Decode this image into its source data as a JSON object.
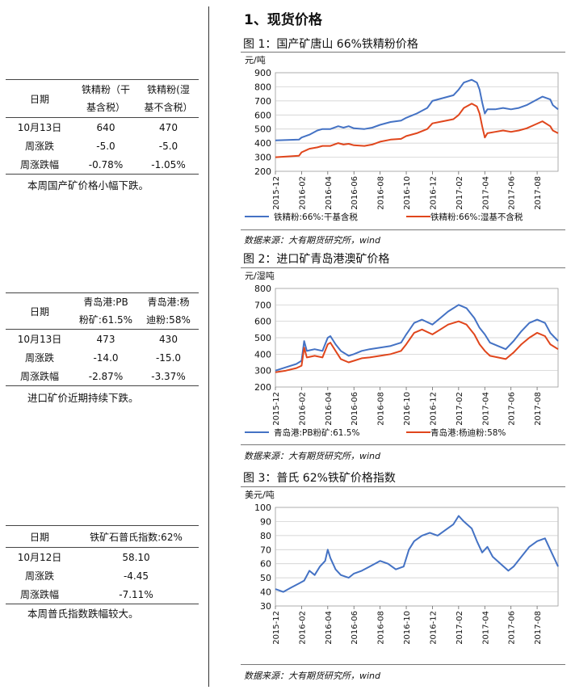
{
  "section_title": "1、现货价格",
  "tables": [
    {
      "header": [
        "日期",
        "铁精粉（干基含税）",
        "铁精粉(湿基不含税）"
      ],
      "header_lines": [
        [
          "日期"
        ],
        [
          "铁精粉（干",
          "基含税）"
        ],
        [
          "铁精粉(湿",
          "基不含税）"
        ]
      ],
      "rows": [
        [
          "10月13日",
          "640",
          "470"
        ],
        [
          "周涨跌",
          "-5.0",
          "-5.0"
        ],
        [
          "周涨跌幅",
          "-0.78%",
          "-1.05%"
        ]
      ],
      "note": "本周国产矿价格小幅下跌。"
    },
    {
      "header": [
        "日期",
        "青岛港:PB粉矿:61.5%",
        "青岛港:杨迪粉:58%"
      ],
      "header_lines": [
        [
          "日期"
        ],
        [
          "青岛港:PB",
          "粉矿:61.5%"
        ],
        [
          "青岛港:杨",
          "迪粉:58%"
        ]
      ],
      "rows": [
        [
          "10月13日",
          "473",
          "430"
        ],
        [
          "周涨跌",
          "-14.0",
          "-15.0"
        ],
        [
          "周涨跌幅",
          "-2.87%",
          "-3.37%"
        ]
      ],
      "note": "进口矿价近期持续下跌。"
    },
    {
      "header": [
        "日期",
        "铁矿石普氏指数:62%"
      ],
      "rows": [
        [
          "10月12日",
          "58.10"
        ],
        [
          "周涨跌",
          "-4.45"
        ],
        [
          "周涨跌幅",
          "-7.11%"
        ]
      ],
      "note": "本周普氏指数跌幅较大。"
    }
  ],
  "source_text": "数据来源：大有期货研究所，wind",
  "chart_data": [
    {
      "type": "line",
      "figure_title": "图 1：国产矿唐山 66%铁精粉价格",
      "ylabel": "元/吨",
      "ylim": [
        200,
        900
      ],
      "yticks": [
        200,
        300,
        400,
        500,
        600,
        700,
        800,
        900
      ],
      "x": [
        "2015-12",
        "2016-02",
        "2016-04",
        "2016-06",
        "2016-08",
        "2016-10",
        "2016-12",
        "2017-02",
        "2017-04",
        "2017-06",
        "2017-08"
      ],
      "x_end_index": 10.8,
      "series": [
        {
          "name": "铁精粉:66%:干基含税",
          "color": "#4472C4",
          "points": [
            [
              0,
              420
            ],
            [
              0.9,
              425
            ],
            [
              1,
              440
            ],
            [
              1.3,
              460
            ],
            [
              1.6,
              490
            ],
            [
              1.8,
              500
            ],
            [
              2.1,
              500
            ],
            [
              2.4,
              520
            ],
            [
              2.6,
              510
            ],
            [
              2.8,
              520
            ],
            [
              3,
              505
            ],
            [
              3.4,
              500
            ],
            [
              3.7,
              510
            ],
            [
              4,
              530
            ],
            [
              4.4,
              550
            ],
            [
              4.8,
              560
            ],
            [
              5,
              580
            ],
            [
              5.4,
              610
            ],
            [
              5.8,
              650
            ],
            [
              6,
              700
            ],
            [
              6.4,
              720
            ],
            [
              6.8,
              740
            ],
            [
              7,
              780
            ],
            [
              7.2,
              830
            ],
            [
              7.5,
              850
            ],
            [
              7.7,
              830
            ],
            [
              7.8,
              780
            ],
            [
              7.9,
              690
            ],
            [
              8,
              610
            ],
            [
              8.1,
              640
            ],
            [
              8.4,
              640
            ],
            [
              8.7,
              650
            ],
            [
              9,
              640
            ],
            [
              9.3,
              650
            ],
            [
              9.6,
              670
            ],
            [
              9.9,
              700
            ],
            [
              10.2,
              730
            ],
            [
              10.5,
              710
            ],
            [
              10.6,
              670
            ],
            [
              10.8,
              640
            ]
          ]
        },
        {
          "name": "铁精粉:66%:湿基不含税",
          "color": "#E0461C",
          "points": [
            [
              0,
              300
            ],
            [
              0.9,
              310
            ],
            [
              1,
              335
            ],
            [
              1.3,
              360
            ],
            [
              1.6,
              370
            ],
            [
              1.8,
              380
            ],
            [
              2.1,
              380
            ],
            [
              2.4,
              400
            ],
            [
              2.6,
              390
            ],
            [
              2.8,
              395
            ],
            [
              3,
              385
            ],
            [
              3.4,
              380
            ],
            [
              3.7,
              390
            ],
            [
              4,
              410
            ],
            [
              4.4,
              425
            ],
            [
              4.8,
              430
            ],
            [
              5,
              450
            ],
            [
              5.4,
              470
            ],
            [
              5.8,
              500
            ],
            [
              6,
              540
            ],
            [
              6.4,
              555
            ],
            [
              6.8,
              570
            ],
            [
              7,
              600
            ],
            [
              7.2,
              650
            ],
            [
              7.5,
              680
            ],
            [
              7.7,
              660
            ],
            [
              7.8,
              610
            ],
            [
              7.9,
              520
            ],
            [
              8,
              440
            ],
            [
              8.1,
              470
            ],
            [
              8.4,
              480
            ],
            [
              8.7,
              490
            ],
            [
              9,
              480
            ],
            [
              9.3,
              490
            ],
            [
              9.6,
              505
            ],
            [
              9.9,
              530
            ],
            [
              10.2,
              555
            ],
            [
              10.5,
              520
            ],
            [
              10.6,
              490
            ],
            [
              10.8,
              470
            ]
          ]
        }
      ]
    },
    {
      "type": "line",
      "figure_title": "图 2：进口矿青岛港澳矿价格",
      "ylabel": "元/湿吨",
      "ylim": [
        200,
        800
      ],
      "yticks": [
        200,
        300,
        400,
        500,
        600,
        700,
        800
      ],
      "x": [
        "2015-12",
        "2016-02",
        "2016-04",
        "2016-06",
        "2016-08",
        "2016-10",
        "2016-12",
        "2017-02",
        "2017-04",
        "2017-06",
        "2017-08"
      ],
      "x_end_index": 10.8,
      "series": [
        {
          "name": "青岛港:PB粉矿:61.5%",
          "color": "#4472C4",
          "points": [
            [
              0,
              300
            ],
            [
              0.4,
              320
            ],
            [
              0.8,
              340
            ],
            [
              1,
              360
            ],
            [
              1.1,
              480
            ],
            [
              1.2,
              420
            ],
            [
              1.5,
              430
            ],
            [
              1.8,
              420
            ],
            [
              2,
              500
            ],
            [
              2.1,
              510
            ],
            [
              2.3,
              460
            ],
            [
              2.5,
              420
            ],
            [
              2.8,
              390
            ],
            [
              3,
              400
            ],
            [
              3.3,
              420
            ],
            [
              3.6,
              430
            ],
            [
              4,
              440
            ],
            [
              4.4,
              450
            ],
            [
              4.8,
              470
            ],
            [
              5,
              520
            ],
            [
              5.3,
              590
            ],
            [
              5.6,
              610
            ],
            [
              6,
              580
            ],
            [
              6.3,
              620
            ],
            [
              6.6,
              660
            ],
            [
              7,
              700
            ],
            [
              7.3,
              680
            ],
            [
              7.6,
              620
            ],
            [
              7.8,
              560
            ],
            [
              8,
              520
            ],
            [
              8.2,
              470
            ],
            [
              8.5,
              450
            ],
            [
              8.8,
              430
            ],
            [
              9.1,
              480
            ],
            [
              9.4,
              540
            ],
            [
              9.7,
              590
            ],
            [
              10,
              610
            ],
            [
              10.3,
              590
            ],
            [
              10.5,
              530
            ],
            [
              10.8,
              480
            ]
          ]
        },
        {
          "name": "青岛港:杨迪粉:58%",
          "color": "#E0461C",
          "points": [
            [
              0,
              290
            ],
            [
              0.4,
              300
            ],
            [
              0.8,
              315
            ],
            [
              1,
              330
            ],
            [
              1.1,
              440
            ],
            [
              1.2,
              380
            ],
            [
              1.5,
              390
            ],
            [
              1.8,
              380
            ],
            [
              2,
              460
            ],
            [
              2.1,
              470
            ],
            [
              2.3,
              420
            ],
            [
              2.5,
              370
            ],
            [
              2.8,
              350
            ],
            [
              3,
              360
            ],
            [
              3.3,
              375
            ],
            [
              3.6,
              380
            ],
            [
              4,
              390
            ],
            [
              4.4,
              400
            ],
            [
              4.8,
              420
            ],
            [
              5,
              460
            ],
            [
              5.3,
              530
            ],
            [
              5.6,
              550
            ],
            [
              6,
              520
            ],
            [
              6.3,
              550
            ],
            [
              6.6,
              580
            ],
            [
              7,
              600
            ],
            [
              7.3,
              580
            ],
            [
              7.6,
              520
            ],
            [
              7.8,
              460
            ],
            [
              8,
              420
            ],
            [
              8.2,
              390
            ],
            [
              8.5,
              380
            ],
            [
              8.8,
              370
            ],
            [
              9.1,
              410
            ],
            [
              9.4,
              460
            ],
            [
              9.7,
              500
            ],
            [
              10,
              530
            ],
            [
              10.3,
              510
            ],
            [
              10.5,
              460
            ],
            [
              10.8,
              430
            ]
          ]
        }
      ]
    },
    {
      "type": "line",
      "figure_title": "图 3：普氏 62%铁矿价格指数",
      "ylabel": "美元/吨",
      "ylim": [
        30,
        100
      ],
      "yticks": [
        30,
        40,
        50,
        60,
        70,
        80,
        90,
        100
      ],
      "x": [
        "2015-12",
        "2016-02",
        "2016-04",
        "2016-06",
        "2016-08",
        "2016-10",
        "2016-12",
        "2017-02",
        "2017-04",
        "2017-06",
        "2017-08"
      ],
      "x_end_index": 10.8,
      "series": [
        {
          "name": "",
          "color": "#4472C4",
          "points": [
            [
              0,
              42
            ],
            [
              0.3,
              40
            ],
            [
              0.6,
              43
            ],
            [
              0.9,
              46
            ],
            [
              1.1,
              48
            ],
            [
              1.3,
              55
            ],
            [
              1.5,
              52
            ],
            [
              1.7,
              58
            ],
            [
              1.9,
              62
            ],
            [
              2,
              70
            ],
            [
              2.1,
              64
            ],
            [
              2.3,
              56
            ],
            [
              2.5,
              52
            ],
            [
              2.8,
              50
            ],
            [
              3,
              53
            ],
            [
              3.3,
              55
            ],
            [
              3.6,
              58
            ],
            [
              4,
              62
            ],
            [
              4.3,
              60
            ],
            [
              4.6,
              56
            ],
            [
              4.9,
              58
            ],
            [
              5.1,
              70
            ],
            [
              5.3,
              76
            ],
            [
              5.6,
              80
            ],
            [
              5.9,
              82
            ],
            [
              6.2,
              80
            ],
            [
              6.5,
              84
            ],
            [
              6.8,
              88
            ],
            [
              7,
              94
            ],
            [
              7.2,
              90
            ],
            [
              7.5,
              85
            ],
            [
              7.7,
              76
            ],
            [
              7.9,
              68
            ],
            [
              8.1,
              72
            ],
            [
              8.3,
              65
            ],
            [
              8.6,
              60
            ],
            [
              8.9,
              55
            ],
            [
              9.1,
              58
            ],
            [
              9.4,
              65
            ],
            [
              9.7,
              72
            ],
            [
              10,
              76
            ],
            [
              10.3,
              78
            ],
            [
              10.5,
              70
            ],
            [
              10.7,
              62
            ],
            [
              10.8,
              58
            ]
          ]
        }
      ]
    }
  ]
}
